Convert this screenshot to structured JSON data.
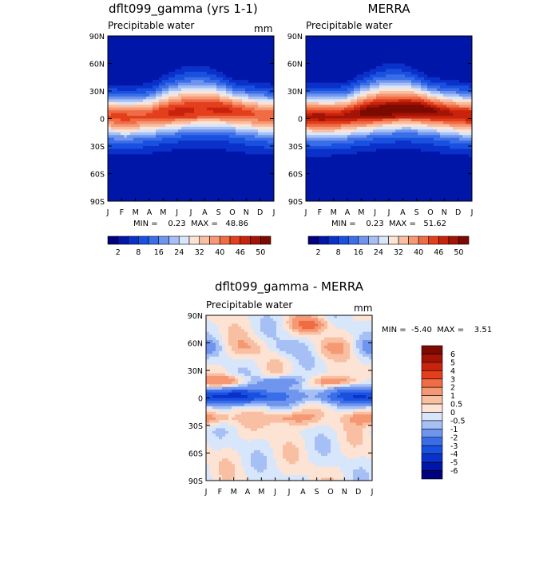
{
  "palette": [
    "#00007f",
    "#0016a8",
    "#0a31c9",
    "#1a50e0",
    "#3a6ee8",
    "#6f95ee",
    "#a6bff4",
    "#d8e6fb",
    "#fde3d3",
    "#f9bfa2",
    "#f59873",
    "#ef6c45",
    "#e43f1c",
    "#c8230d",
    "#a31406",
    "#7b0a00"
  ],
  "chart_data": [
    {
      "type": "heatmap",
      "title": "dflt099_gamma (yrs 1-1)",
      "subtitle": "Precipitable water",
      "units": "mm",
      "x_ticks": [
        "J",
        "F",
        "M",
        "A",
        "M",
        "J",
        "J",
        "A",
        "S",
        "O",
        "N",
        "D",
        "J"
      ],
      "y_ticks": [
        "90N",
        "60N",
        "30N",
        "0",
        "30S",
        "60S",
        "90S"
      ],
      "stats": {
        "text": "MIN =    0.23  MAX =   48.86",
        "min": 0.23,
        "max": 48.86
      },
      "colorbar": {
        "orientation": "horizontal",
        "levels": [
          2,
          5,
          8,
          12,
          16,
          20,
          24,
          28,
          32,
          36,
          40,
          43,
          46,
          48,
          50
        ],
        "tick_labels": [
          "2",
          "8",
          "16",
          "24",
          "32",
          "40",
          "46",
          "50"
        ]
      },
      "field": {
        "model": "climatology",
        "peak": 44.5,
        "pole": 2.2,
        "amplitude": 4,
        "width": 21,
        "xrange": [
          0,
          12
        ],
        "yrange": [
          -90,
          90
        ]
      }
    },
    {
      "type": "heatmap",
      "title": "MERRA",
      "subtitle": "Precipitable water",
      "units": "",
      "x_ticks": [
        "J",
        "F",
        "M",
        "A",
        "M",
        "J",
        "J",
        "A",
        "S",
        "O",
        "N",
        "D",
        "J"
      ],
      "y_ticks": [
        "90N",
        "60N",
        "30N",
        "0",
        "30S",
        "60S",
        "90S"
      ],
      "stats": {
        "text": "MIN =    0.23  MAX =   51.62",
        "min": 0.23,
        "max": 51.62
      },
      "colorbar": {
        "orientation": "horizontal",
        "levels": [
          2,
          5,
          8,
          12,
          16,
          20,
          24,
          28,
          32,
          36,
          40,
          43,
          46,
          48,
          50
        ],
        "tick_labels": [
          "2",
          "8",
          "16",
          "24",
          "32",
          "40",
          "46",
          "50"
        ]
      },
      "field": {
        "model": "climatology",
        "peak": 49.5,
        "pole": 2.0,
        "amplitude": 4,
        "width": 22,
        "xrange": [
          0,
          12
        ],
        "yrange": [
          -90,
          90
        ]
      }
    },
    {
      "type": "heatmap",
      "title": "dflt099_gamma - MERRA",
      "subtitle": "Precipitable water",
      "units": "mm",
      "x_ticks": [
        "J",
        "F",
        "M",
        "A",
        "M",
        "J",
        "J",
        "A",
        "S",
        "O",
        "N",
        "D",
        "J"
      ],
      "y_ticks": [
        "90N",
        "60N",
        "30N",
        "0",
        "30S",
        "60S",
        "90S"
      ],
      "stats": {
        "text": "MIN =  -5.40  MAX =    3.51",
        "min": -5.4,
        "max": 3.51
      },
      "colorbar": {
        "orientation": "vertical",
        "levels": [
          -6,
          -5,
          -4,
          -3,
          -2,
          -1,
          -0.5,
          0,
          0.5,
          1,
          2,
          3,
          4,
          5,
          6
        ],
        "tick_labels": [
          "6",
          "5",
          "4",
          "3",
          "2",
          "1",
          "0.5",
          "0",
          "-0.5",
          "-1",
          "-2",
          "-3",
          "-4",
          "-5",
          "-6"
        ]
      },
      "field": {
        "model": "difference",
        "xrange": [
          0,
          12
        ],
        "yrange": [
          -90,
          90
        ]
      }
    }
  ]
}
